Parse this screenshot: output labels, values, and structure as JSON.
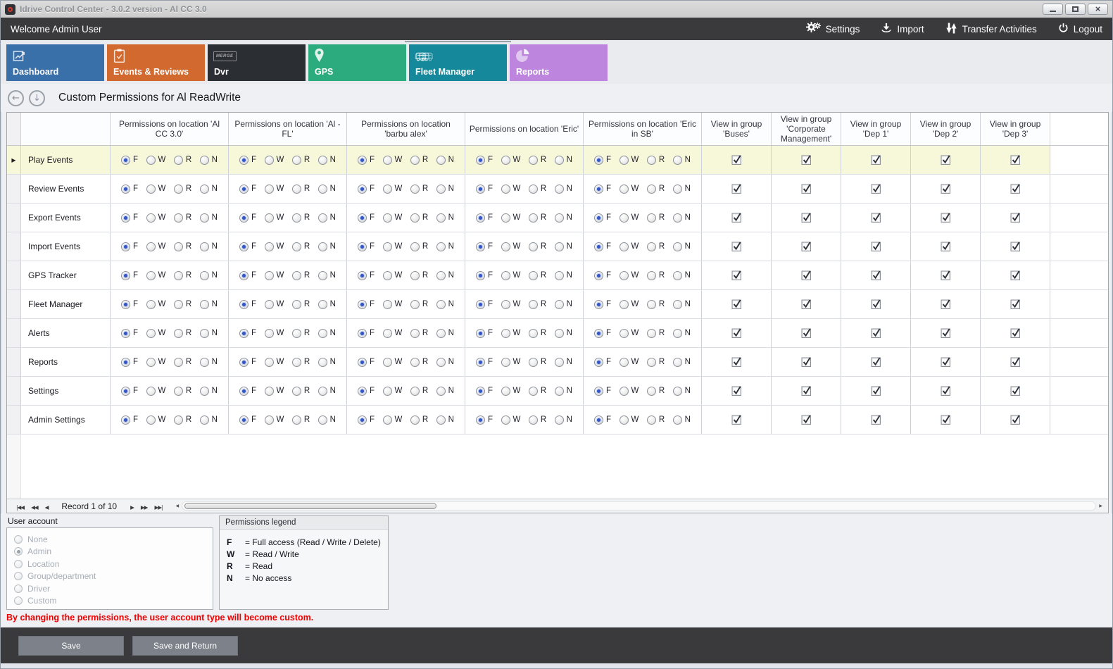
{
  "window": {
    "title": "Idrive Control Center - 3.0.2 version - Al CC 3.0",
    "controls": [
      {
        "id": "minimize"
      },
      {
        "id": "maximize"
      },
      {
        "id": "close"
      }
    ]
  },
  "topbar": {
    "welcome": "Welcome Admin User",
    "actions": [
      {
        "id": "settings",
        "label": "Settings",
        "icon": "gear-icon"
      },
      {
        "id": "import",
        "label": "Import",
        "icon": "import-icon"
      },
      {
        "id": "transfer-activities",
        "label": "Transfer Activities",
        "icon": "transfer-icon"
      },
      {
        "id": "logout",
        "label": "Logout",
        "icon": "power-icon"
      }
    ]
  },
  "tabs": [
    {
      "id": "dashboard",
      "label": "Dashboard",
      "icon": "chart-line-icon",
      "color": "#3a70a9",
      "selected": false
    },
    {
      "id": "events-reviews",
      "label": "Events & Reviews",
      "icon": "clipboard-check-icon",
      "color": "#d2692e",
      "selected": false
    },
    {
      "id": "dvr",
      "label": "Dvr",
      "icon": "merge-logo-icon",
      "icon_text": "MERGE",
      "color": "#2b2f33",
      "selected": false
    },
    {
      "id": "gps",
      "label": "GPS",
      "icon": "map-pin-icon",
      "color": "#2bab7e",
      "selected": false
    },
    {
      "id": "fleet-manager",
      "label": "Fleet Manager",
      "icon": "vehicles-icon",
      "color": "#15899b",
      "selected": true
    },
    {
      "id": "reports",
      "label": "Reports",
      "icon": "pie-chart-icon",
      "color": "#bd85dd",
      "selected": false
    }
  ],
  "page": {
    "title": "Custom Permissions for Al ReadWrite"
  },
  "grid": {
    "location_columns": [
      "Permissions on location 'Al CC 3.0'",
      "Permissions on location 'Al - FL'",
      "Permissions on location 'barbu alex'",
      "Permissions on location 'Eric'",
      "Permissions on location 'Eric in SB'"
    ],
    "group_columns": [
      "View in group 'Buses'",
      "View in group 'Corporate Management'",
      "View in group 'Dep 1'",
      "View in group 'Dep 2'",
      "View in group 'Dep 3'"
    ],
    "permission_options": [
      "F",
      "W",
      "R",
      "N"
    ],
    "rows": [
      {
        "label": "Play Events",
        "selected": true,
        "permissions": [
          "F",
          "F",
          "F",
          "F",
          "F"
        ],
        "groups": [
          true,
          true,
          true,
          true,
          true
        ]
      },
      {
        "label": "Review Events",
        "selected": false,
        "permissions": [
          "F",
          "F",
          "F",
          "F",
          "F"
        ],
        "groups": [
          true,
          true,
          true,
          true,
          true
        ]
      },
      {
        "label": "Export Events",
        "selected": false,
        "permissions": [
          "F",
          "F",
          "F",
          "F",
          "F"
        ],
        "groups": [
          true,
          true,
          true,
          true,
          true
        ]
      },
      {
        "label": "Import Events",
        "selected": false,
        "permissions": [
          "F",
          "F",
          "F",
          "F",
          "F"
        ],
        "groups": [
          true,
          true,
          true,
          true,
          true
        ]
      },
      {
        "label": "GPS Tracker",
        "selected": false,
        "permissions": [
          "F",
          "F",
          "F",
          "F",
          "F"
        ],
        "groups": [
          true,
          true,
          true,
          true,
          true
        ]
      },
      {
        "label": "Fleet Manager",
        "selected": false,
        "permissions": [
          "F",
          "F",
          "F",
          "F",
          "F"
        ],
        "groups": [
          true,
          true,
          true,
          true,
          true
        ]
      },
      {
        "label": "Alerts",
        "selected": false,
        "permissions": [
          "F",
          "F",
          "F",
          "F",
          "F"
        ],
        "groups": [
          true,
          true,
          true,
          true,
          true
        ]
      },
      {
        "label": "Reports",
        "selected": false,
        "permissions": [
          "F",
          "F",
          "F",
          "F",
          "F"
        ],
        "groups": [
          true,
          true,
          true,
          true,
          true
        ]
      },
      {
        "label": "Settings",
        "selected": false,
        "permissions": [
          "F",
          "F",
          "F",
          "F",
          "F"
        ],
        "groups": [
          true,
          true,
          true,
          true,
          true
        ]
      },
      {
        "label": "Admin Settings",
        "selected": false,
        "permissions": [
          "F",
          "F",
          "F",
          "F",
          "F"
        ],
        "groups": [
          true,
          true,
          true,
          true,
          true
        ]
      }
    ]
  },
  "navigator": {
    "record_text": "Record 1 of 10",
    "buttons_before": [
      "first-record-icon",
      "prev-page-icon",
      "prev-record-icon"
    ],
    "buttons_after": [
      "next-record-icon",
      "next-page-icon",
      "last-record-icon"
    ]
  },
  "user_account": {
    "label": "User account",
    "options": [
      {
        "label": "None",
        "selected": false
      },
      {
        "label": "Admin",
        "selected": true
      },
      {
        "label": "Location",
        "selected": false
      },
      {
        "label": "Group/department",
        "selected": false
      },
      {
        "label": "Driver",
        "selected": false
      },
      {
        "label": "Custom",
        "selected": false
      }
    ]
  },
  "legend": {
    "title": "Permissions legend",
    "entries": [
      {
        "key": "F",
        "desc": "= Full access (Read / Write / Delete)"
      },
      {
        "key": "W",
        "desc": "= Read / Write"
      },
      {
        "key": "R",
        "desc": "= Read"
      },
      {
        "key": "N",
        "desc": "= No access"
      }
    ]
  },
  "warning": "By changing the permissions, the user account type will become custom.",
  "footer": {
    "save_label": "Save",
    "save_return_label": "Save and Return"
  },
  "colors": {
    "selected_row": "#f7f7d9",
    "warning_text": "#ef0000",
    "topbar_bg": "#3a3a3c",
    "radio_selected_dot": "#3356c4"
  }
}
